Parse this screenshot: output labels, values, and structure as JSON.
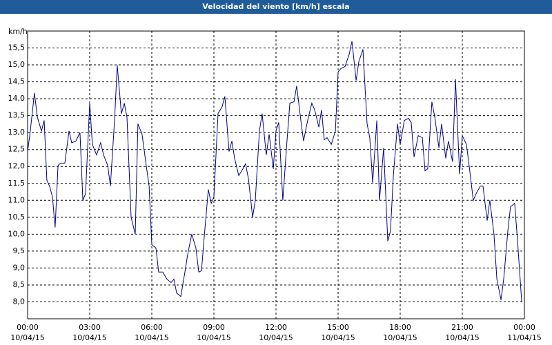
{
  "chart_data": {
    "type": "line",
    "title": "Velocidad del viento [km/h] escala",
    "ylabel": "km/h",
    "x": [
      0,
      0.13,
      0.33,
      0.47,
      0.67,
      0.8,
      0.93,
      1.07,
      1.2,
      1.33,
      1.47,
      1.6,
      1.8,
      2,
      2.13,
      2.33,
      2.53,
      2.67,
      2.8,
      3,
      3.13,
      3.33,
      3.53,
      3.67,
      3.87,
      4,
      4.2,
      4.33,
      4.53,
      4.67,
      4.8,
      5,
      5.2,
      5.33,
      5.53,
      5.73,
      5.87,
      6,
      6.2,
      6.33,
      6.53,
      6.73,
      6.93,
      7.07,
      7.2,
      7.4,
      7.6,
      7.73,
      7.93,
      8.13,
      8.27,
      8.4,
      8.53,
      8.73,
      8.87,
      9,
      9.2,
      9.4,
      9.53,
      9.73,
      9.87,
      10,
      10.2,
      10.4,
      10.53,
      10.67,
      10.87,
      11,
      11.2,
      11.33,
      11.53,
      11.67,
      11.87,
      12,
      12.13,
      12.33,
      12.53,
      12.67,
      12.87,
      13,
      13.2,
      13.33,
      13.53,
      13.73,
      13.87,
      14.07,
      14.2,
      14.33,
      14.47,
      14.67,
      14.87,
      15,
      15.13,
      15.33,
      15.53,
      15.67,
      15.87,
      16,
      16.2,
      16.4,
      16.53,
      16.67,
      16.87,
      17,
      17.2,
      17.4,
      17.53,
      17.67,
      17.87,
      18,
      18.2,
      18.4,
      18.53,
      18.67,
      18.87,
      19.07,
      19.2,
      19.33,
      19.53,
      19.67,
      19.87,
      20,
      20.2,
      20.33,
      20.53,
      20.67,
      20.87,
      21,
      21.2,
      21.33,
      21.53,
      21.67,
      21.87,
      22,
      22.2,
      22.33,
      22.53,
      22.67,
      22.87,
      23,
      23.2,
      23.33,
      23.53,
      23.67,
      23.87
    ],
    "series": [
      {
        "color": "#00008b",
        "values": [
          12.44,
          13.05,
          14.17,
          13.46,
          13.05,
          13.36,
          11.6,
          11.4,
          11.1,
          10.2,
          12.03,
          12.1,
          12.1,
          13.05,
          12.7,
          12.75,
          13.0,
          11.0,
          11.2,
          13.87,
          12.65,
          12.34,
          12.7,
          12.34,
          12.03,
          11.42,
          13.36,
          14.99,
          13.56,
          13.87,
          13.46,
          10.5,
          10.0,
          13.26,
          12.95,
          12.03,
          11.42,
          9.69,
          9.59,
          8.88,
          8.88,
          8.67,
          8.57,
          8.67,
          8.26,
          8.16,
          8.88,
          9.39,
          10.0,
          9.59,
          8.88,
          8.92,
          9.9,
          11.32,
          10.91,
          11.1,
          13.56,
          13.77,
          14.07,
          12.44,
          12.75,
          12.24,
          11.73,
          11.93,
          12.08,
          11.63,
          10.5,
          11.0,
          13.05,
          13.56,
          12.34,
          12.95,
          11.93,
          13.05,
          13.3,
          11.0,
          12.75,
          13.87,
          13.91,
          14.38,
          13.36,
          12.75,
          13.36,
          13.87,
          13.67,
          13.16,
          13.67,
          12.79,
          12.85,
          12.65,
          13.05,
          14.79,
          14.89,
          14.95,
          15.3,
          15.7,
          14.54,
          15.09,
          15.46,
          13.26,
          12.85,
          11.52,
          13.36,
          11.0,
          12.55,
          9.79,
          10.1,
          11.73,
          13.26,
          12.65,
          13.36,
          13.42,
          13.3,
          12.28,
          12.91,
          12.85,
          11.87,
          11.93,
          13.91,
          13.46,
          12.55,
          13.26,
          12.24,
          12.75,
          12.14,
          14.58,
          11.77,
          12.91,
          12.65,
          12.03,
          11.0,
          11.2,
          11.42,
          11.42,
          10.4,
          11.0,
          10.0,
          8.67,
          8.06,
          8.67,
          10.1,
          10.81,
          10.91,
          9.79,
          8.0
        ]
      }
    ],
    "xlim": [
      0,
      24
    ],
    "ylim": [
      7.5,
      16.0
    ],
    "xticks": [
      {
        "value": 0,
        "label": "00:00\n10/04/15"
      },
      {
        "value": 3,
        "label": "03:00\n10/04/15"
      },
      {
        "value": 6,
        "label": "06:00\n10/04/15"
      },
      {
        "value": 9,
        "label": "09:00\n10/04/15"
      },
      {
        "value": 12,
        "label": "12:00\n10/04/15"
      },
      {
        "value": 15,
        "label": "15:00\n10/04/15"
      },
      {
        "value": 18,
        "label": "18:00\n10/04/15"
      },
      {
        "value": 21,
        "label": "21:00\n10/04/15"
      },
      {
        "value": 24,
        "label": "00:00\n11/04/15"
      }
    ],
    "yticks": [
      {
        "value": 8,
        "label": "8,0"
      },
      {
        "value": 8.5,
        "label": "8,5"
      },
      {
        "value": 9,
        "label": "9,0"
      },
      {
        "value": 9.5,
        "label": "9,5"
      },
      {
        "value": 10,
        "label": "10,0"
      },
      {
        "value": 10.5,
        "label": "10,5"
      },
      {
        "value": 11,
        "label": "11,0"
      },
      {
        "value": 11.5,
        "label": "11,5"
      },
      {
        "value": 12,
        "label": "12,0"
      },
      {
        "value": 12.5,
        "label": "12,5"
      },
      {
        "value": 13,
        "label": "13,0"
      },
      {
        "value": 13.5,
        "label": "13,5"
      },
      {
        "value": 14,
        "label": "14,0"
      },
      {
        "value": 14.5,
        "label": "14,5"
      },
      {
        "value": 15,
        "label": "15,0"
      },
      {
        "value": 15.5,
        "label": "15,5"
      }
    ],
    "grid": true
  }
}
